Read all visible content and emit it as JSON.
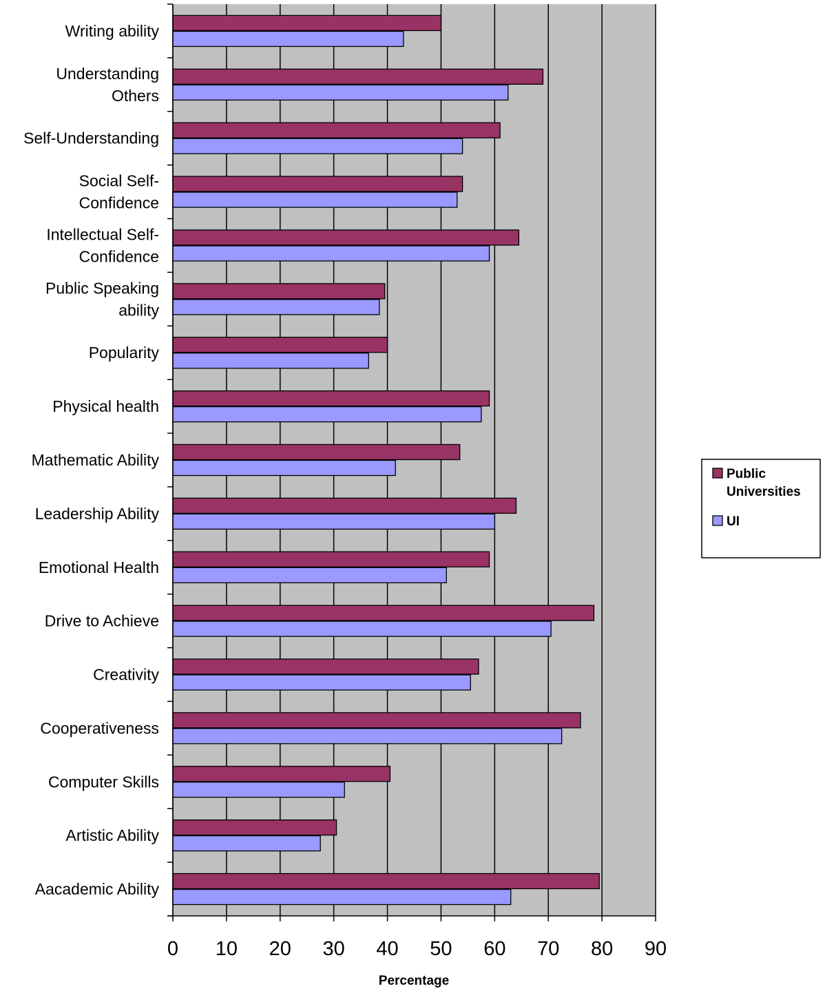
{
  "chart_data": {
    "type": "bar",
    "orientation": "horizontal",
    "title": "",
    "xlabel": "Percentage",
    "ylabel": "",
    "xlim": [
      0,
      90
    ],
    "x_ticks": [
      "0",
      "10",
      "20",
      "30",
      "40",
      "50",
      "60",
      "70",
      "80",
      "90"
    ],
    "grid": true,
    "legend_position": "right",
    "categories": [
      "Writing ability",
      "Understanding Others",
      "Self-Understanding",
      "Social Self-Confidence",
      "Intellectual Self-Confidence",
      "Public Speaking ability",
      "Popularity",
      "Physical health",
      "Mathematic Ability",
      "Leadership Ability",
      "Emotional Health",
      "Drive to Achieve",
      "Creativity",
      "Cooperativeness",
      "Computer Skills",
      "Artistic Ability",
      "Aacademic Ability"
    ],
    "category_label_lines": [
      [
        "Writing ability"
      ],
      [
        "Understanding",
        "Others"
      ],
      [
        "Self-Understanding"
      ],
      [
        "Social Self-",
        "Confidence"
      ],
      [
        "Intellectual Self-",
        "Confidence"
      ],
      [
        "Public Speaking",
        "ability"
      ],
      [
        "Popularity"
      ],
      [
        "Physical health"
      ],
      [
        "Mathematic Ability"
      ],
      [
        "Leadership Ability"
      ],
      [
        "Emotional Health"
      ],
      [
        "Drive to Achieve"
      ],
      [
        "Creativity"
      ],
      [
        "Cooperativeness"
      ],
      [
        "Computer Skills"
      ],
      [
        "Artistic Ability"
      ],
      [
        "Aacademic Ability"
      ]
    ],
    "series": [
      {
        "name": "Public Universities",
        "legend_lines": [
          "Public",
          "Universities"
        ],
        "color": "#993366",
        "values": [
          50,
          69,
          61,
          54,
          64.5,
          39.5,
          40,
          59,
          53.5,
          64,
          59,
          78.5,
          57,
          76,
          40.5,
          30.5,
          79.5
        ]
      },
      {
        "name": "UI",
        "legend_lines": [
          "UI"
        ],
        "color": "#9999FF",
        "values": [
          43,
          62.5,
          54,
          53,
          59,
          38.5,
          36.5,
          57.5,
          41.5,
          60,
          51,
          70.5,
          55.5,
          72.5,
          32,
          27.5,
          63
        ]
      }
    ],
    "plot_background": "#C0C0C0",
    "gridline_color": "#000000"
  }
}
